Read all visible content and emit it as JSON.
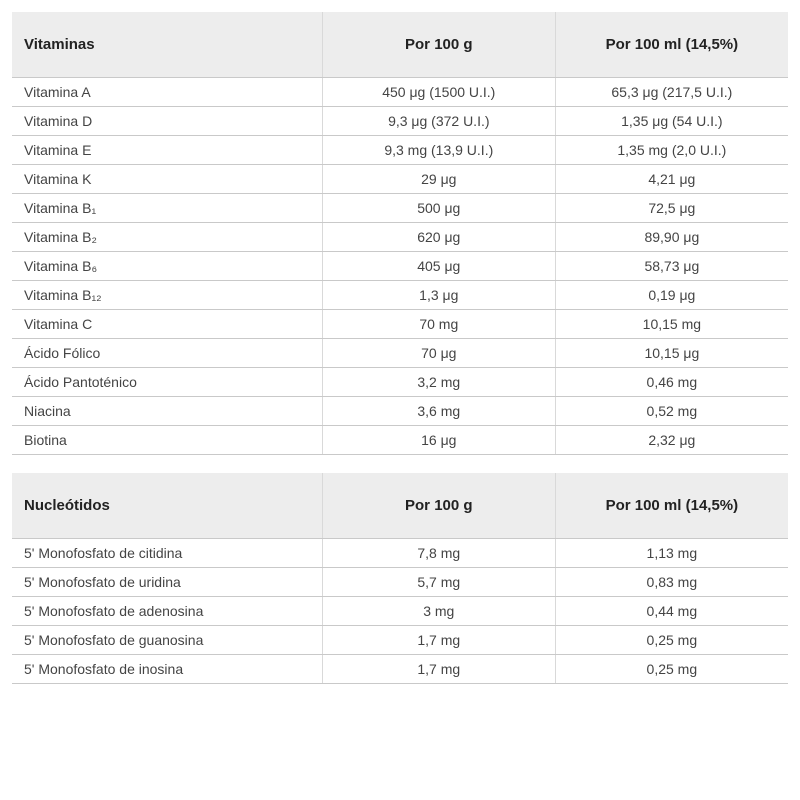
{
  "colors": {
    "header_bg": "#ededed",
    "border": "#c9c9c9",
    "col_divider": "#d9d9d9",
    "text": "#333333",
    "background": "#ffffff"
  },
  "typography": {
    "font_family": "Arial",
    "header_fontsize_pt": 11,
    "body_fontsize_pt": 10
  },
  "layout": {
    "col_widths_pct": [
      40,
      30,
      30
    ]
  },
  "tables": [
    {
      "headers": [
        "Vitaminas",
        "Por 100 g",
        "Por 100 ml (14,5%)"
      ],
      "rows": [
        [
          "Vitamina A",
          "450 μg (1500 U.I.)",
          "65,3 μg (217,5 U.I.)"
        ],
        [
          "Vitamina D",
          "9,3 μg (372 U.I.)",
          "1,35 μg (54 U.I.)"
        ],
        [
          "Vitamina E",
          "9,3 mg (13,9 U.I.)",
          "1,35 mg (2,0 U.I.)"
        ],
        [
          "Vitamina K",
          "29 μg",
          "4,21 μg"
        ],
        [
          "Vitamina B₁",
          "500 μg",
          "72,5 μg"
        ],
        [
          "Vitamina B₂",
          "620 μg",
          "89,90 μg"
        ],
        [
          "Vitamina B₆",
          "405 μg",
          "58,73 μg"
        ],
        [
          "Vitamina B₁₂",
          "1,3 μg",
          "0,19 μg"
        ],
        [
          "Vitamina C",
          "70 mg",
          "10,15 mg"
        ],
        [
          "Ácido Fólico",
          "70 μg",
          "10,15 μg"
        ],
        [
          "Ácido Pantoténico",
          "3,2 mg",
          "0,46 mg"
        ],
        [
          "Niacina",
          "3,6 mg",
          "0,52 mg"
        ],
        [
          "Biotina",
          "16 μg",
          "2,32 μg"
        ]
      ]
    },
    {
      "headers": [
        "Nucleótidos",
        "Por 100 g",
        "Por 100 ml (14,5%)"
      ],
      "rows": [
        [
          "5' Monofosfato de citidina",
          "7,8 mg",
          "1,13 mg"
        ],
        [
          "5' Monofosfato de uridina",
          "5,7 mg",
          "0,83 mg"
        ],
        [
          "5' Monofosfato de adenosina",
          "3 mg",
          "0,44 mg"
        ],
        [
          "5' Monofosfato de guanosina",
          "1,7 mg",
          "0,25 mg"
        ],
        [
          "5' Monofosfato de inosina",
          "1,7 mg",
          "0,25 mg"
        ]
      ]
    }
  ]
}
